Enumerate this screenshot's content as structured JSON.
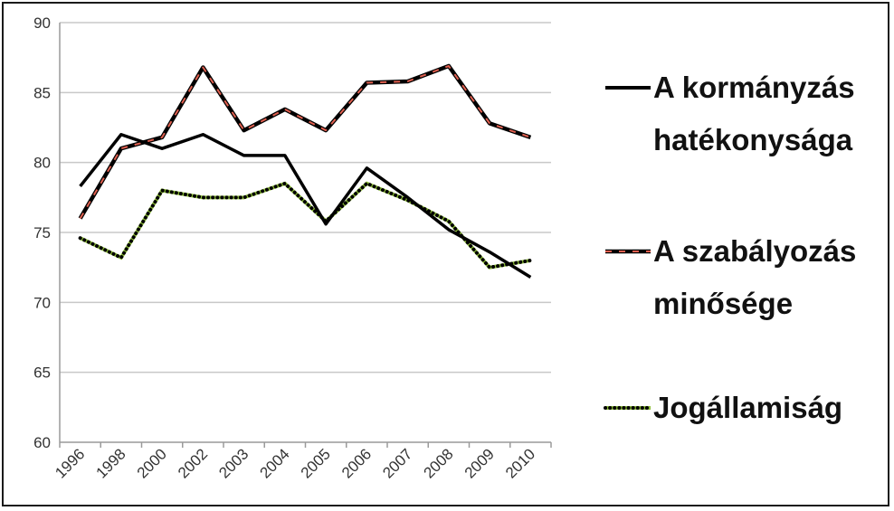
{
  "chart_data": {
    "type": "line",
    "categories": [
      "1996",
      "1998",
      "2000",
      "2002",
      "2003",
      "2004",
      "2005",
      "2006",
      "2007",
      "2008",
      "2009",
      "2010"
    ],
    "series": [
      {
        "name": "A kormányzás hatékonysága",
        "legend_lines": [
          "A kormányzás",
          "hatékonysága"
        ],
        "color": "#000000",
        "values": [
          78.3,
          82.0,
          81.0,
          82.0,
          80.5,
          80.5,
          75.6,
          79.6,
          77.5,
          75.2,
          73.6,
          71.8
        ]
      },
      {
        "name": "A szabályozás minősége",
        "legend_lines": [
          "A szabályozás",
          "minősége"
        ],
        "color": "#000000",
        "dash_color": "#e06050",
        "values": [
          76.0,
          81.0,
          81.8,
          86.8,
          82.3,
          83.8,
          82.3,
          85.7,
          85.8,
          86.9,
          82.8,
          81.8
        ]
      },
      {
        "name": "Jogállamiság",
        "legend_lines": [
          "Jogállamiság"
        ],
        "color": "#8fbf3a",
        "dot_color": "#000000",
        "values": [
          74.6,
          73.2,
          78.0,
          77.5,
          77.5,
          78.5,
          75.8,
          78.5,
          77.3,
          75.8,
          72.5,
          73.0
        ]
      }
    ],
    "yticks": [
      60,
      65,
      70,
      75,
      80,
      85,
      90
    ],
    "ylim": [
      60,
      90
    ],
    "grid": true,
    "legend_position": "right"
  }
}
